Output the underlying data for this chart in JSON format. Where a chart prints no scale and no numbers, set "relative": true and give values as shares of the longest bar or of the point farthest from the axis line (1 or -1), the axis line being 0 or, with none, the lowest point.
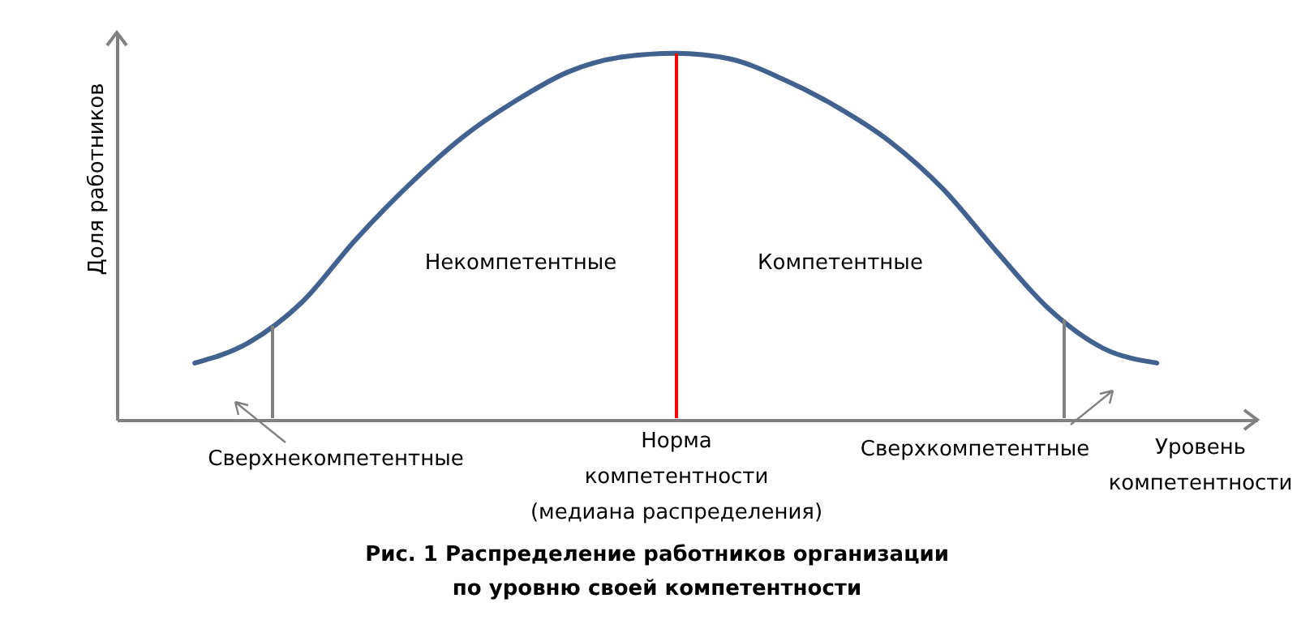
{
  "chart_data": {
    "type": "line",
    "title": "Рис. 1 Распределение работников организации\nпо уровню своей компетентности",
    "xlabel": "Уровень\nкомпетентности",
    "ylabel": "Доля работников",
    "relative": true,
    "categories": [
      null,
      null,
      null,
      null,
      null,
      null,
      null,
      null,
      null,
      null,
      null,
      null,
      null,
      null,
      null,
      null,
      null,
      null,
      null
    ],
    "series": [
      {
        "color": "#41618f",
        "values": [
          0.155,
          0.21,
          0.32,
          0.49,
          0.64,
          0.77,
          0.87,
          0.95,
          0.99,
          1.0,
          0.985,
          0.93,
          0.855,
          0.76,
          0.63,
          0.46,
          0.3,
          0.195,
          0.155
        ]
      }
    ],
    "annotations": [
      "Некомпетентные",
      "Компетентные",
      "Сверхнекомпетентные",
      "Сверхкомпетентные",
      "Норма\nкомпетентности\n(медиана распределения)"
    ]
  }
}
